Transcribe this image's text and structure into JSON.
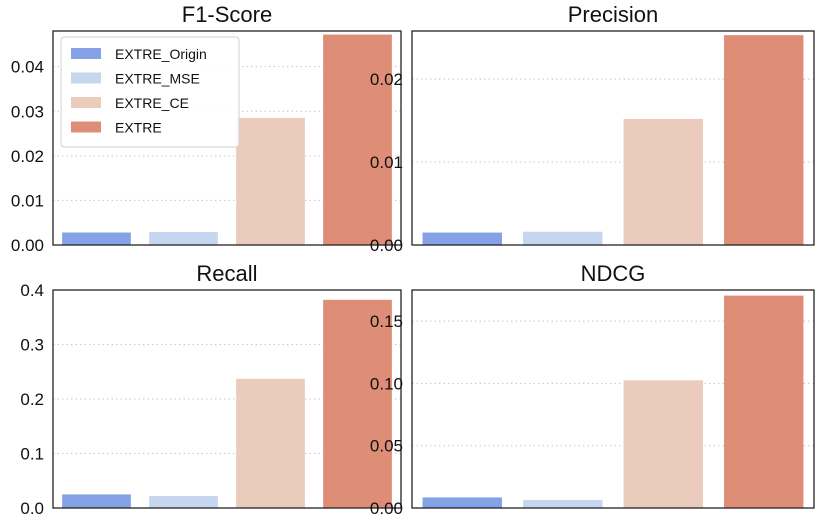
{
  "chart_data": [
    {
      "type": "bar",
      "title": "F1-Score",
      "categories": [
        "EXTRE_Origin",
        "EXTRE_MSE",
        "EXTRE_CE",
        "EXTRE"
      ],
      "values": [
        0.0028,
        0.0029,
        0.0285,
        0.0472
      ],
      "ylim": [
        0,
        0.048
      ],
      "yticks": [
        0.0,
        0.01,
        0.02,
        0.03,
        0.04
      ],
      "ytick_labels": [
        "0.00",
        "0.01",
        "0.02",
        "0.03",
        "0.04"
      ],
      "xlabel": "",
      "ylabel": "",
      "grid": true,
      "legend": "top-left"
    },
    {
      "type": "bar",
      "title": "Precision",
      "categories": [
        "EXTRE_Origin",
        "EXTRE_MSE",
        "EXTRE_CE",
        "EXTRE"
      ],
      "values": [
        0.0015,
        0.0016,
        0.0152,
        0.0253
      ],
      "ylim": [
        0,
        0.0258
      ],
      "yticks": [
        0.0,
        0.01,
        0.02
      ],
      "ytick_labels": [
        "0.00",
        "0.01",
        "0.02"
      ],
      "xlabel": "",
      "ylabel": "",
      "grid": true
    },
    {
      "type": "bar",
      "title": "Recall",
      "categories": [
        "EXTRE_Origin",
        "EXTRE_MSE",
        "EXTRE_CE",
        "EXTRE"
      ],
      "values": [
        0.025,
        0.022,
        0.237,
        0.382
      ],
      "ylim": [
        0,
        0.4
      ],
      "yticks": [
        0.0,
        0.1,
        0.2,
        0.3,
        0.4
      ],
      "ytick_labels": [
        "0.0",
        "0.1",
        "0.2",
        "0.3",
        "0.4"
      ],
      "xlabel": "",
      "ylabel": "",
      "grid": true
    },
    {
      "type": "bar",
      "title": "NDCG",
      "categories": [
        "EXTRE_Origin",
        "EXTRE_MSE",
        "EXTRE_CE",
        "EXTRE"
      ],
      "values": [
        0.0085,
        0.0065,
        0.1025,
        0.1705
      ],
      "ylim": [
        0,
        0.175
      ],
      "yticks": [
        0.0,
        0.05,
        0.1,
        0.15
      ],
      "ytick_labels": [
        "0.00",
        "0.05",
        "0.10",
        "0.15"
      ],
      "xlabel": "",
      "ylabel": "",
      "grid": true
    }
  ],
  "legend": {
    "entries": [
      "EXTRE_Origin",
      "EXTRE_MSE",
      "EXTRE_CE",
      "EXTRE"
    ]
  },
  "colors": {
    "EXTRE_Origin": "#85a2e6",
    "EXTRE_MSE": "#c6d6ef",
    "EXTRE_CE": "#eacbbc",
    "EXTRE": "#de8d76"
  }
}
